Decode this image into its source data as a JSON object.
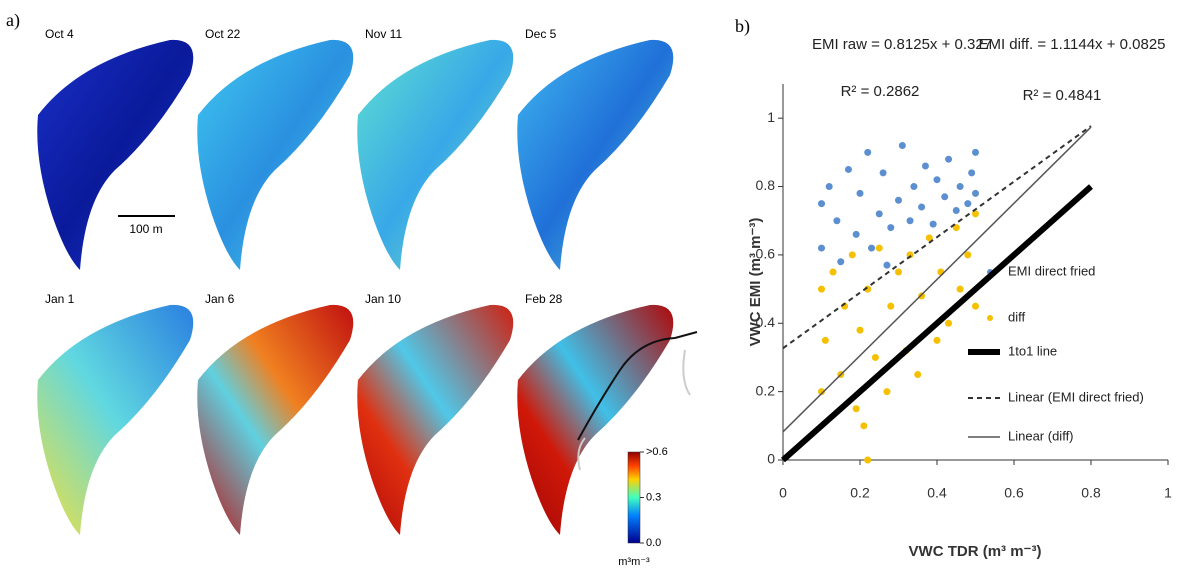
{
  "chart_data": [
    {
      "type": "map",
      "label": "a)",
      "panels": [
        "Oct 4",
        "Oct 22",
        "Nov 11",
        "Dec 5",
        "Jan 1",
        "Jan 6",
        "Jan 10",
        "Feb 28"
      ],
      "scale_bar": "100 m",
      "colorbar": {
        "lim": [
          0,
          0.6
        ],
        "ticks": [
          {
            "value": 0.6,
            "label": ">0.6"
          },
          0.3,
          {
            "value": 0,
            "label": "0.0"
          }
        ],
        "unit": "m³m⁻³"
      }
    },
    {
      "type": "scatter",
      "label": "b)",
      "equations": [
        "EMI raw = 0.8125x + 0.327",
        "EMI diff. = 1.1144x + 0.0825"
      ],
      "r2": [
        "R² = 0.2862",
        "R² = 0.4841"
      ],
      "x_label": "VWC TDR (m³ m⁻³)",
      "y_label": "VWC EMI (m³ m⁻³)",
      "xlim": [
        0,
        1
      ],
      "ylim": [
        0,
        1.1
      ],
      "xticks": [
        0,
        0.2,
        0.4,
        0.6,
        0.8,
        1
      ],
      "yticks": [
        0,
        0.2,
        0.4,
        0.6,
        0.8,
        1
      ],
      "series": [
        {
          "name": "EMI direct fried",
          "color": "#5b8fd0",
          "kind": "points",
          "x": [
            0.1,
            0.1,
            0.12,
            0.14,
            0.15,
            0.17,
            0.19,
            0.2,
            0.22,
            0.23,
            0.25,
            0.26,
            0.28,
            0.3,
            0.31,
            0.33,
            0.34,
            0.36,
            0.37,
            0.39,
            0.4,
            0.42,
            0.43,
            0.45,
            0.46,
            0.48,
            0.49,
            0.5,
            0.5,
            0.27
          ],
          "values": [
            0.75,
            0.62,
            0.8,
            0.7,
            0.58,
            0.85,
            0.66,
            0.78,
            0.9,
            0.62,
            0.72,
            0.84,
            0.68,
            0.76,
            0.92,
            0.7,
            0.8,
            0.74,
            0.86,
            0.69,
            0.82,
            0.77,
            0.88,
            0.73,
            0.8,
            0.75,
            0.84,
            0.9,
            0.78,
            0.57
          ]
        },
        {
          "name": "diff",
          "color": "#f5c000",
          "kind": "points",
          "x": [
            0.1,
            0.1,
            0.11,
            0.13,
            0.15,
            0.16,
            0.18,
            0.19,
            0.2,
            0.21,
            0.22,
            0.24,
            0.25,
            0.27,
            0.28,
            0.3,
            0.32,
            0.33,
            0.35,
            0.36,
            0.38,
            0.4,
            0.41,
            0.43,
            0.45,
            0.46,
            0.48,
            0.5,
            0.5,
            0.22
          ],
          "values": [
            0.2,
            0.5,
            0.35,
            0.55,
            0.25,
            0.45,
            0.6,
            0.15,
            0.38,
            0.1,
            0.5,
            0.3,
            0.62,
            0.2,
            0.45,
            0.55,
            0.32,
            0.6,
            0.25,
            0.48,
            0.65,
            0.35,
            0.55,
            0.4,
            0.68,
            0.5,
            0.6,
            0.72,
            0.45,
            0
          ]
        },
        {
          "name": "1to1 line",
          "color": "#000000",
          "kind": "line",
          "width": 6,
          "dash": "none",
          "x": [
            0,
            0.8
          ],
          "values": [
            0,
            0.8
          ]
        },
        {
          "name": "Linear (EMI direct fried)",
          "color": "#333333",
          "kind": "line",
          "width": 2,
          "dash": "5 4",
          "x": [
            0,
            0.8
          ],
          "values": [
            0.327,
            0.977
          ]
        },
        {
          "name": "Linear (diff)",
          "color": "#555555",
          "kind": "line",
          "width": 1.5,
          "dash": "none",
          "x": [
            0,
            0.8
          ],
          "values": [
            0.0825,
            0.974
          ]
        }
      ]
    }
  ]
}
